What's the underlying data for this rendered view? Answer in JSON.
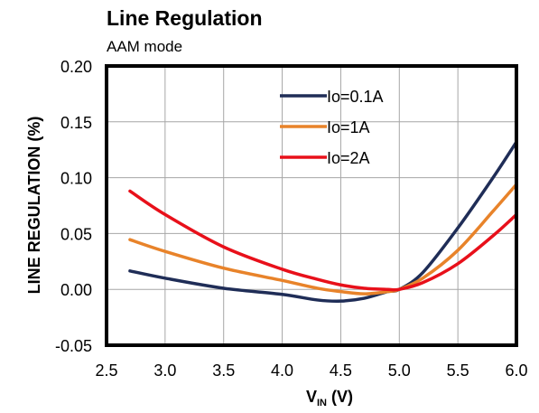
{
  "chart_data": {
    "type": "line",
    "title": "Line Regulation",
    "subtitle": "AAM mode",
    "xlabel_main": "V",
    "xlabel_sub": "IN",
    "xlabel_unit": " (V)",
    "ylabel": "LINE REGULATION (%)",
    "xlim": [
      2.5,
      6.0
    ],
    "ylim": [
      -0.05,
      0.2
    ],
    "xticks": [
      "2.5",
      "3.0",
      "3.5",
      "4.0",
      "4.5",
      "5.0",
      "5.5",
      "6.0"
    ],
    "xtick_values": [
      2.5,
      3.0,
      3.5,
      4.0,
      4.5,
      5.0,
      5.5,
      6.0
    ],
    "yticks": [
      "0.20",
      "0.15",
      "0.10",
      "0.05",
      "0.00",
      "-0.05"
    ],
    "ytick_values": [
      0.2,
      0.15,
      0.1,
      0.05,
      0.0,
      -0.05
    ],
    "grid": true,
    "legend_position": "top-right",
    "series": [
      {
        "name": "Io=0.1A",
        "color": "#1f2d57",
        "x": [
          2.7,
          3.0,
          3.5,
          4.0,
          4.3,
          4.5,
          4.7,
          4.9,
          5.0,
          5.2,
          5.5,
          5.8,
          6.0
        ],
        "y": [
          0.0165,
          0.01,
          0.001,
          -0.0045,
          -0.0095,
          -0.0105,
          -0.008,
          -0.002,
          0.0,
          0.015,
          0.055,
          0.1,
          0.132
        ]
      },
      {
        "name": "Io=1A",
        "color": "#e8832a",
        "x": [
          2.7,
          3.0,
          3.5,
          4.0,
          4.3,
          4.5,
          4.7,
          4.9,
          5.0,
          5.2,
          5.5,
          5.8,
          6.0
        ],
        "y": [
          0.0445,
          0.034,
          0.019,
          0.008,
          0.001,
          -0.002,
          -0.004,
          -0.002,
          0.0,
          0.01,
          0.035,
          0.07,
          0.094
        ]
      },
      {
        "name": "Io=2A",
        "color": "#e8101a",
        "x": [
          2.7,
          3.0,
          3.5,
          4.0,
          4.3,
          4.5,
          4.7,
          4.9,
          5.0,
          5.2,
          5.5,
          5.8,
          6.0
        ],
        "y": [
          0.088,
          0.067,
          0.038,
          0.018,
          0.009,
          0.004,
          0.001,
          0.0,
          0.0,
          0.006,
          0.023,
          0.048,
          0.067
        ]
      }
    ]
  }
}
